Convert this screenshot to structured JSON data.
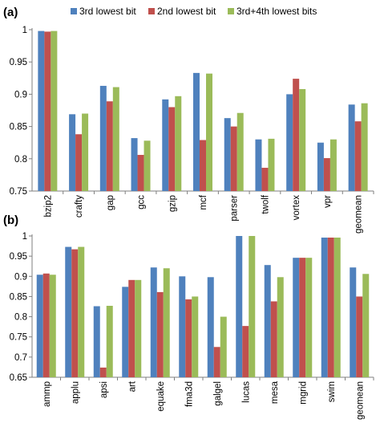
{
  "chart_data": [
    {
      "type": "bar",
      "panel_label": "(a)",
      "categories": [
        "bzip2",
        "crafty",
        "gap",
        "gcc",
        "gzip",
        "mcf",
        "parser",
        "twolf",
        "vortex",
        "vpr",
        "geomean"
      ],
      "series": [
        {
          "name": "3rd lowest bit",
          "color": "#4f81bd",
          "values": [
            0.998,
            0.869,
            0.913,
            0.832,
            0.892,
            0.933,
            0.863,
            0.83,
            0.9,
            0.825,
            0.884
          ]
        },
        {
          "name": "2nd lowest bit",
          "color": "#c0504d",
          "values": [
            0.997,
            0.838,
            0.889,
            0.806,
            0.88,
            0.829,
            0.85,
            0.786,
            0.924,
            0.801,
            0.858
          ]
        },
        {
          "name": "3rd+4th lowest bits",
          "color": "#9bbb59",
          "values": [
            0.998,
            0.87,
            0.911,
            0.828,
            0.897,
            0.932,
            0.871,
            0.831,
            0.908,
            0.83,
            0.886
          ]
        }
      ],
      "ylim": [
        0.75,
        1.0
      ],
      "yticks": [
        "0.75",
        "0.8",
        "0.85",
        "0.9",
        "0.95",
        "1"
      ],
      "legend_position": "top",
      "grid": false
    },
    {
      "type": "bar",
      "panel_label": "(b)",
      "categories": [
        "ammp",
        "applu",
        "apsi",
        "art",
        "equake",
        "fma3d",
        "galgel",
        "lucas",
        "mesa",
        "mgrid",
        "swim",
        "geomean"
      ],
      "series": [
        {
          "name": "3rd lowest bit",
          "color": "#4f81bd",
          "values": [
            0.904,
            0.973,
            0.826,
            0.874,
            0.922,
            0.9,
            0.898,
            1.0,
            0.928,
            0.946,
            0.996,
            0.922
          ]
        },
        {
          "name": "2nd lowest bit",
          "color": "#c0504d",
          "values": [
            0.907,
            0.967,
            0.674,
            0.891,
            0.861,
            0.843,
            0.725,
            0.777,
            0.838,
            0.946,
            0.996,
            0.85
          ]
        },
        {
          "name": "3rd+4th lowest bits",
          "color": "#9bbb59",
          "values": [
            0.904,
            0.973,
            0.827,
            0.891,
            0.92,
            0.85,
            0.8,
            1.0,
            0.898,
            0.946,
            0.996,
            0.906
          ]
        }
      ],
      "ylim": [
        0.65,
        1.0
      ],
      "yticks": [
        "0.65",
        "0.7",
        "0.75",
        "0.8",
        "0.85",
        "0.9",
        "0.95",
        "1"
      ],
      "grid": false
    }
  ]
}
